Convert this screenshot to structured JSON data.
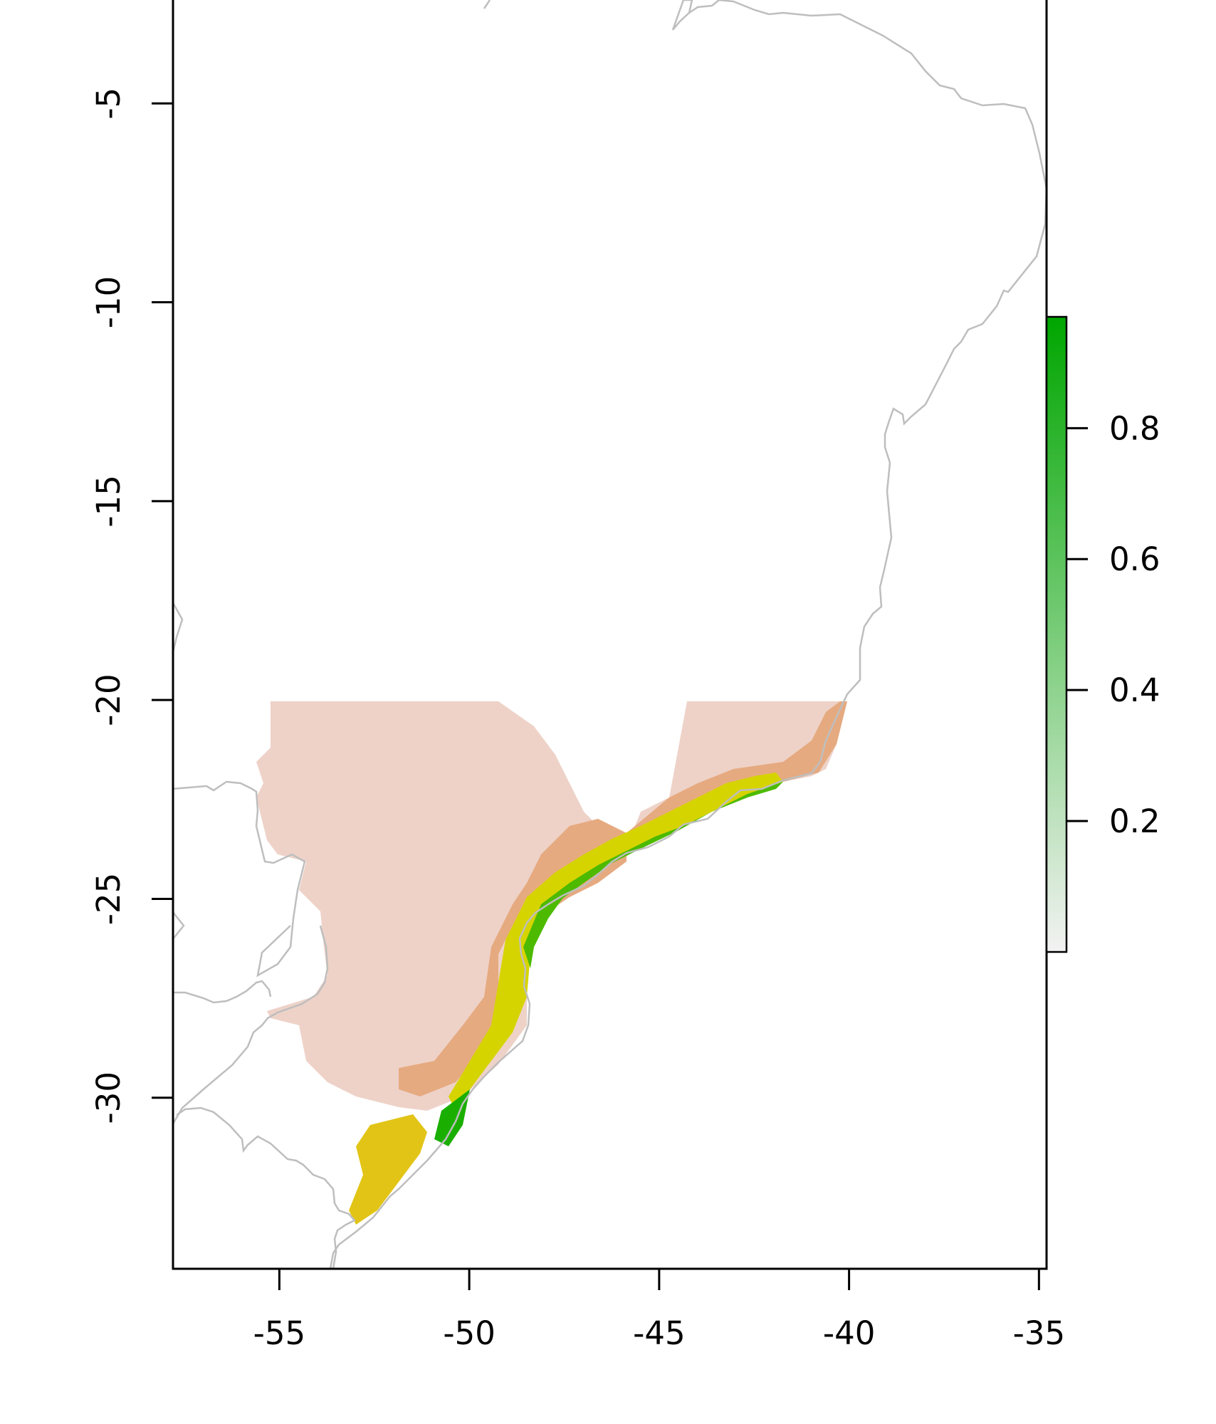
{
  "map": {
    "x_axis": {
      "range": [
        -57.8,
        -34.8
      ],
      "ticks": [
        -55,
        -50,
        -45,
        -40,
        -35
      ],
      "tick_labels": [
        "-55",
        "-50",
        "-45",
        "-40",
        "-35"
      ]
    },
    "y_axis": {
      "range": [
        -34.3,
        -2.4
      ],
      "ticks": [
        -5,
        -10,
        -15,
        -20,
        -25,
        -30
      ],
      "tick_labels": [
        "-5",
        "-10",
        "-15",
        "-20",
        "-25",
        "-30"
      ]
    },
    "legend": {
      "placement": "right",
      "value_range": [
        0,
        0.97
      ],
      "ticks": [
        0.2,
        0.4,
        0.6,
        0.8
      ],
      "tick_labels": [
        "0.2",
        "0.4",
        "0.6",
        "0.8"
      ],
      "color_stops": [
        "#f2f2f2",
        "#eec9b6",
        "#e8b48b",
        "#e6a050",
        "#e2c417",
        "#e6e600",
        "#9bd300",
        "#4dba00",
        "#00a600"
      ]
    },
    "colors": {
      "frame": "#000000",
      "border_lines": "#bebebe",
      "background": "#ffffff"
    }
  }
}
